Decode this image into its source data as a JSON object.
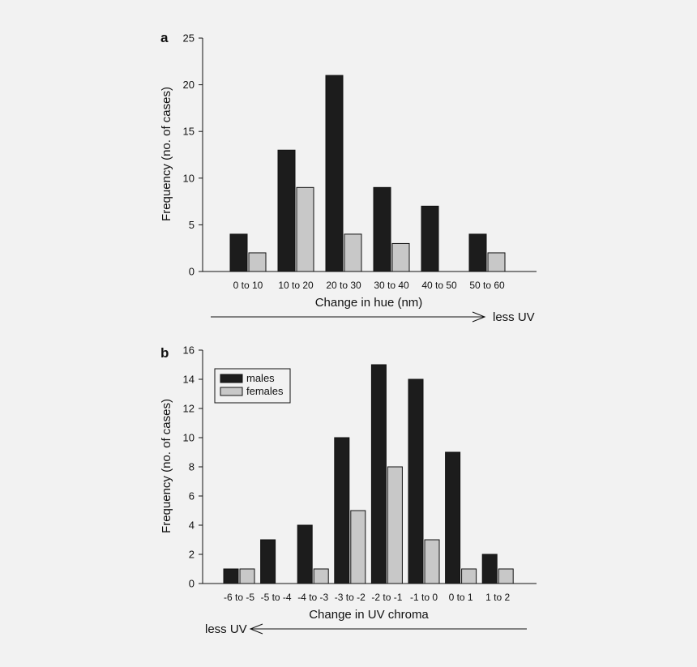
{
  "colors": {
    "background": "#f2f2f2",
    "males": "#1c1c1c",
    "females": "#c8c8c8",
    "axis": "#111111"
  },
  "chart_data": [
    {
      "panel": "a",
      "type": "bar",
      "xlabel": "Change in hue (nm)",
      "ylabel": "Frequency (no. of cases)",
      "ylim": [
        0,
        25
      ],
      "yticks": [
        0,
        5,
        10,
        15,
        20,
        25
      ],
      "categories": [
        "0 to 10",
        "10 to 20",
        "20 to 30",
        "30 to 40",
        "40 to 50",
        "50 to 60"
      ],
      "series": [
        {
          "name": "males",
          "values": [
            4,
            13,
            21,
            9,
            7,
            4
          ]
        },
        {
          "name": "females",
          "values": [
            2,
            9,
            4,
            3,
            0,
            2
          ]
        }
      ],
      "annotation": {
        "text": "less UV",
        "arrow": "right"
      }
    },
    {
      "panel": "b",
      "type": "bar",
      "xlabel": "Change in UV chroma",
      "ylabel": "Frequency (no. of cases)",
      "ylim": [
        0,
        16
      ],
      "yticks": [
        0,
        2,
        4,
        6,
        8,
        10,
        12,
        14,
        16
      ],
      "categories": [
        "-6 to -5",
        "-5 to -4",
        "-4 to -3",
        "-3 to -2",
        "-2 to -1",
        "-1 to 0",
        "0 to 1",
        "1 to 2"
      ],
      "series": [
        {
          "name": "males",
          "values": [
            1,
            3,
            4,
            10,
            15,
            14,
            9,
            2
          ]
        },
        {
          "name": "females",
          "values": [
            1,
            0,
            1,
            5,
            8,
            3,
            1,
            1
          ]
        }
      ],
      "legend": {
        "position": "top-left",
        "entries": [
          "males",
          "females"
        ]
      },
      "annotation": {
        "text": "less UV",
        "arrow": "left"
      }
    }
  ]
}
